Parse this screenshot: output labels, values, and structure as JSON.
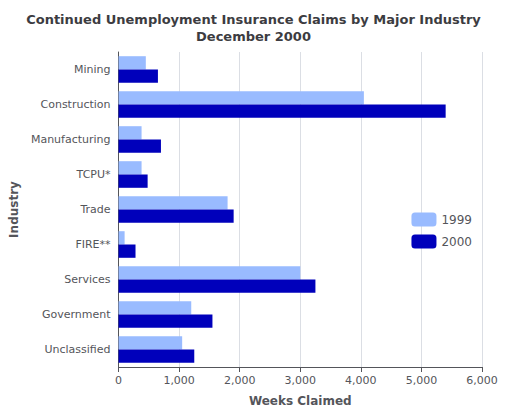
{
  "chart_data": {
    "type": "bar",
    "orientation": "horizontal",
    "title": "Continued Unemployment Insurance Claims by Major Industry\nDecember 2000",
    "categories": [
      "Mining",
      "Construction",
      "Manufacturing",
      "TCPU*",
      "Trade",
      "FIRE**",
      "Services",
      "Government",
      "Unclassified"
    ],
    "series": [
      {
        "name": "1999",
        "color": "#99bbff",
        "values": [
          450,
          4050,
          380,
          380,
          1800,
          100,
          3000,
          1200,
          1050
        ]
      },
      {
        "name": "2000",
        "color": "#0000bb",
        "values": [
          650,
          5400,
          700,
          480,
          1900,
          280,
          3250,
          1550,
          1250
        ]
      }
    ],
    "xlabel": "Weeks Claimed",
    "ylabel": "Industry",
    "xlim": [
      0,
      6000
    ],
    "xticks": [
      0,
      {
        "value": 1000,
        "label": "1,000"
      },
      {
        "value": 2000,
        "label": "2,000"
      },
      {
        "value": 3000,
        "label": "3,000"
      },
      {
        "value": 4000,
        "label": "4,000"
      },
      {
        "value": 5000,
        "label": "5,000"
      },
      {
        "value": 6000,
        "label": "6,000"
      }
    ],
    "grid": true,
    "legend": "right"
  }
}
